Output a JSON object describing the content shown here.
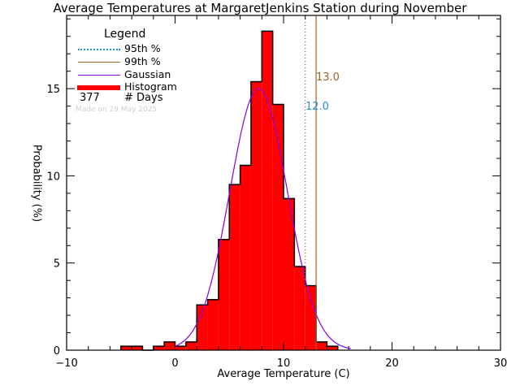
{
  "title": "Average Temperatures at MargaretJenkins Station during November",
  "legend": {
    "header": "Legend",
    "items": [
      {
        "label": "95th %",
        "style": "dotted",
        "color": "#1e90d6"
      },
      {
        "label": "99th %",
        "style": "solid",
        "color": "#a0602a"
      },
      {
        "label": "Gaussian",
        "style": "solid",
        "color": "#8a00e6"
      },
      {
        "label": "Histogram",
        "style": "thick",
        "color": "#ff0000"
      }
    ],
    "days_count": "377",
    "days_label": "# Days",
    "made_on": "Made on 29 May 2025"
  },
  "percentile_labels": {
    "p95": "12.0",
    "p99": "13.0"
  },
  "colors": {
    "histogram_fill": "#ff0000",
    "gaussian": "#8a00e6",
    "p95_line": "#a0602a",
    "p95_text": "#1e90d6",
    "p99_line": "#a0602a",
    "p99_text": "#a0602a"
  },
  "chart_data": {
    "type": "bar",
    "title": "Average Temperatures at MargaretJenkins Station during November",
    "xlabel": "Average Temperature (C)",
    "ylabel": "Probability (%)",
    "xlim": [
      -10,
      30
    ],
    "ylim": [
      0,
      19.2
    ],
    "xticks": [
      -10,
      0,
      10,
      20,
      30
    ],
    "yticks": [
      0,
      5,
      10,
      15
    ],
    "bin_width": 1,
    "bins": [
      {
        "x0": -5,
        "x1": -4,
        "value": 0.23
      },
      {
        "x0": -4,
        "x1": -3,
        "value": 0.23
      },
      {
        "x0": -3,
        "x1": -2,
        "value": 0.0
      },
      {
        "x0": -2,
        "x1": -1,
        "value": 0.23
      },
      {
        "x0": -1,
        "x1": 0,
        "value": 0.47
      },
      {
        "x0": 0,
        "x1": 1,
        "value": 0.23
      },
      {
        "x0": 1,
        "x1": 2,
        "value": 0.47
      },
      {
        "x0": 2,
        "x1": 3,
        "value": 2.6
      },
      {
        "x0": 3,
        "x1": 4,
        "value": 2.9
      },
      {
        "x0": 4,
        "x1": 5,
        "value": 6.35
      },
      {
        "x0": 5,
        "x1": 6,
        "value": 9.5
      },
      {
        "x0": 6,
        "x1": 7,
        "value": 10.6
      },
      {
        "x0": 7,
        "x1": 8,
        "value": 15.4
      },
      {
        "x0": 8,
        "x1": 9,
        "value": 18.3
      },
      {
        "x0": 9,
        "x1": 10,
        "value": 14.1
      },
      {
        "x0": 10,
        "x1": 11,
        "value": 8.7
      },
      {
        "x0": 11,
        "x1": 12,
        "value": 4.8
      },
      {
        "x0": 12,
        "x1": 13,
        "value": 3.7
      },
      {
        "x0": 13,
        "x1": 14,
        "value": 0.47
      },
      {
        "x0": 14,
        "x1": 15,
        "value": 0.23
      }
    ],
    "gaussian": {
      "mean": 7.7,
      "sigma": 2.66,
      "peak": 15.0,
      "x_range": [
        0,
        16.2
      ]
    },
    "percentiles": {
      "p95": 12.0,
      "p99": 13.0
    },
    "n_days": 377,
    "legend_position": "upper-left",
    "grid": false
  }
}
